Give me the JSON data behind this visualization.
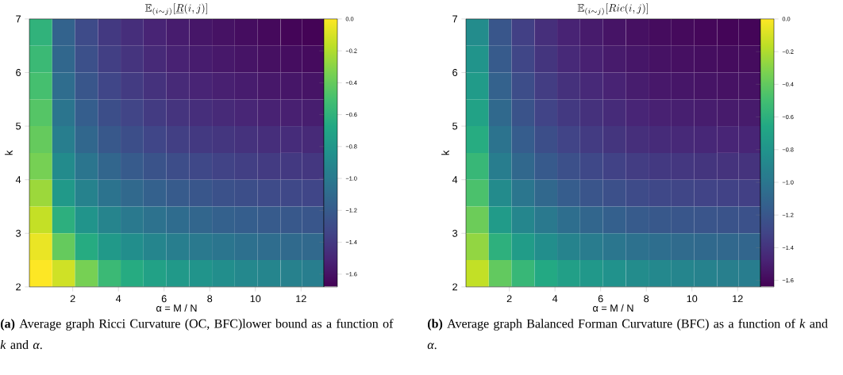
{
  "chart_data": [
    {
      "type": "heatmap",
      "title": "\\mathbb{E}_{(i\\sim j)}[\\underline{R}(i,j)]",
      "xlabel": "α = M / N",
      "ylabel": "k",
      "x": [
        0.6,
        1.6,
        2.6,
        3.6,
        4.6,
        5.6,
        6.6,
        7.6,
        8.6,
        9.6,
        10.6,
        11.6,
        12.5
      ],
      "y": [
        6.75,
        6.25,
        5.75,
        5.25,
        4.75,
        4.25,
        3.75,
        3.25,
        2.75,
        2.25
      ],
      "xlim": [
        0.1,
        13
      ],
      "xticks": [
        2,
        4,
        6,
        8,
        10,
        12
      ],
      "ylim": [
        2,
        7
      ],
      "yticks": [
        2,
        3,
        4,
        5,
        6,
        7
      ],
      "clim": [
        -1.68,
        0
      ],
      "cticks": [
        {
          "value": 0,
          "label": "0.0"
        },
        {
          "value": -0.2,
          "label": "−0.2"
        },
        {
          "value": -0.4,
          "label": "−0.4"
        },
        {
          "value": -0.6,
          "label": "−0.6"
        },
        {
          "value": -0.8,
          "label": "−0.8"
        },
        {
          "value": -1.0,
          "label": "−1.0"
        },
        {
          "value": -1.2,
          "label": "−1.2"
        },
        {
          "value": -1.4,
          "label": "−1.4"
        },
        {
          "value": -1.6,
          "label": "−1.6"
        }
      ],
      "cells": [
        [
          -0.6,
          -1.15,
          -1.3,
          -1.4,
          -1.46,
          -1.51,
          -1.55,
          -1.58,
          -1.6,
          -1.62,
          -1.64,
          -1.66,
          -1.67
        ],
        [
          -0.55,
          -1.12,
          -1.27,
          -1.37,
          -1.43,
          -1.48,
          -1.52,
          -1.55,
          -1.57,
          -1.59,
          -1.61,
          -1.62,
          -1.63
        ],
        [
          -0.5,
          -1.08,
          -1.23,
          -1.33,
          -1.39,
          -1.44,
          -1.48,
          -1.51,
          -1.53,
          -1.55,
          -1.57,
          -1.58,
          -1.59
        ],
        [
          -0.45,
          -1.03,
          -1.18,
          -1.28,
          -1.34,
          -1.39,
          -1.43,
          -1.46,
          -1.48,
          -1.5,
          -1.52,
          -1.53,
          -1.54
        ],
        [
          -0.4,
          -0.97,
          -1.12,
          -1.22,
          -1.28,
          -1.33,
          -1.37,
          -1.4,
          -1.42,
          -1.44,
          -1.46,
          -1.47,
          -1.48
        ],
        [
          -0.35,
          -0.88,
          -1.03,
          -1.13,
          -1.2,
          -1.25,
          -1.29,
          -1.32,
          -1.35,
          -1.37,
          -1.39,
          -1.4,
          -1.41
        ],
        [
          -0.25,
          -0.78,
          -0.94,
          -1.04,
          -1.11,
          -1.16,
          -1.2,
          -1.23,
          -1.26,
          -1.28,
          -1.3,
          -1.32,
          -1.33
        ],
        [
          -0.15,
          -0.62,
          -0.82,
          -0.93,
          -1.0,
          -1.05,
          -1.09,
          -1.13,
          -1.16,
          -1.18,
          -1.2,
          -1.22,
          -1.23
        ],
        [
          -0.05,
          -0.4,
          -0.65,
          -0.78,
          -0.86,
          -0.92,
          -0.97,
          -1.0,
          -1.03,
          -1.06,
          -1.08,
          -1.1,
          -1.11
        ],
        [
          0.0,
          -0.12,
          -0.35,
          -0.55,
          -0.65,
          -0.72,
          -0.78,
          -0.82,
          -0.86,
          -0.9,
          -0.92,
          -0.95,
          -0.97
        ]
      ],
      "annotations": [
        "**(a)** Average graph Ricci Curvature (OC, BFC)lower bound as a function of *k* and *α*."
      ]
    },
    {
      "type": "heatmap",
      "title": "\\mathbb{E}_{(i\\sim j)}[Ric(i,j)]",
      "xlabel": "α = M / N",
      "ylabel": "k",
      "x": [
        0.6,
        1.6,
        2.6,
        3.6,
        4.6,
        5.6,
        6.6,
        7.6,
        8.6,
        9.6,
        10.6,
        11.6,
        12.5
      ],
      "y": [
        6.75,
        6.25,
        5.75,
        5.25,
        4.75,
        4.25,
        3.75,
        3.25,
        2.75,
        2.25
      ],
      "xlim": [
        0.1,
        13
      ],
      "xticks": [
        2,
        4,
        6,
        8,
        10,
        12
      ],
      "ylim": [
        2,
        7
      ],
      "yticks": [
        2,
        3,
        4,
        5,
        6,
        7
      ],
      "clim": [
        -1.64,
        0
      ],
      "cticks": [
        {
          "value": 0,
          "label": "0.0"
        },
        {
          "value": -0.2,
          "label": "−0.2"
        },
        {
          "value": -0.4,
          "label": "−0.4"
        },
        {
          "value": -0.6,
          "label": "−0.6"
        },
        {
          "value": -0.8,
          "label": "−0.8"
        },
        {
          "value": -1.0,
          "label": "−1.0"
        },
        {
          "value": -1.2,
          "label": "−1.2"
        },
        {
          "value": -1.4,
          "label": "−1.4"
        },
        {
          "value": -1.6,
          "label": "−1.6"
        }
      ],
      "cells": [
        [
          -0.85,
          -1.2,
          -1.33,
          -1.42,
          -1.48,
          -1.52,
          -1.55,
          -1.57,
          -1.59,
          -1.6,
          -1.61,
          -1.62,
          -1.62
        ],
        [
          -0.8,
          -1.17,
          -1.3,
          -1.39,
          -1.45,
          -1.49,
          -1.52,
          -1.54,
          -1.56,
          -1.57,
          -1.58,
          -1.59,
          -1.59
        ],
        [
          -0.75,
          -1.13,
          -1.26,
          -1.35,
          -1.41,
          -1.45,
          -1.48,
          -1.51,
          -1.53,
          -1.54,
          -1.55,
          -1.56,
          -1.56
        ],
        [
          -0.7,
          -1.08,
          -1.22,
          -1.31,
          -1.37,
          -1.41,
          -1.44,
          -1.47,
          -1.49,
          -1.5,
          -1.51,
          -1.52,
          -1.52
        ],
        [
          -0.63,
          -1.02,
          -1.16,
          -1.25,
          -1.31,
          -1.36,
          -1.39,
          -1.42,
          -1.44,
          -1.45,
          -1.46,
          -1.47,
          -1.47
        ],
        [
          -0.55,
          -0.95,
          -1.09,
          -1.18,
          -1.24,
          -1.29,
          -1.32,
          -1.35,
          -1.37,
          -1.38,
          -1.39,
          -1.4,
          -1.4
        ],
        [
          -0.47,
          -0.86,
          -1.0,
          -1.09,
          -1.16,
          -1.21,
          -1.24,
          -1.27,
          -1.29,
          -1.3,
          -1.31,
          -1.32,
          -1.33
        ],
        [
          -0.37,
          -0.75,
          -0.89,
          -0.98,
          -1.05,
          -1.1,
          -1.14,
          -1.17,
          -1.19,
          -1.2,
          -1.21,
          -1.22,
          -1.23
        ],
        [
          -0.27,
          -0.6,
          -0.74,
          -0.84,
          -0.91,
          -0.96,
          -1.0,
          -1.03,
          -1.05,
          -1.07,
          -1.08,
          -1.09,
          -1.1
        ],
        [
          -0.15,
          -0.4,
          -0.55,
          -0.65,
          -0.72,
          -0.77,
          -0.81,
          -0.85,
          -0.88,
          -0.9,
          -0.92,
          -0.94,
          -0.95
        ]
      ],
      "annotations": [
        "**(b)** Average graph Balanced Forman Curvature (BFC) as a function of *k* and *α*."
      ]
    }
  ]
}
